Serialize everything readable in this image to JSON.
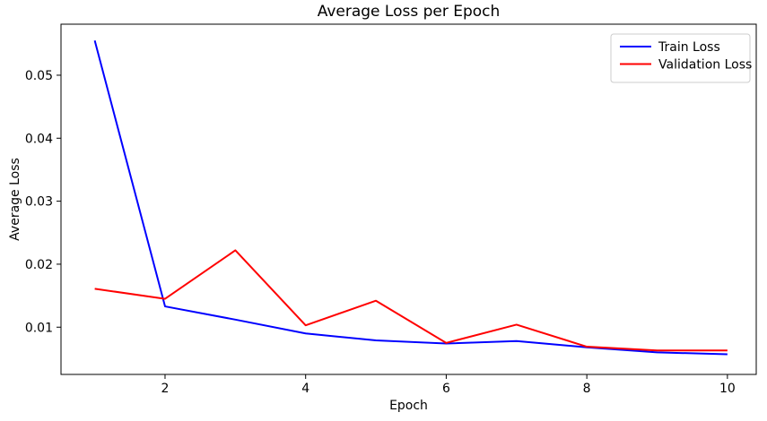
{
  "chart_data": {
    "type": "line",
    "title": "Average Loss per Epoch",
    "xlabel": "Epoch",
    "ylabel": "Average Loss",
    "x": [
      1,
      2,
      3,
      4,
      5,
      6,
      7,
      8,
      9,
      10
    ],
    "series": [
      {
        "name": "Train Loss",
        "color": "#0000ff",
        "values": [
          0.0555,
          0.0133,
          0.0112,
          0.009,
          0.0079,
          0.0074,
          0.0078,
          0.0068,
          0.006,
          0.0057
        ]
      },
      {
        "name": "Validation Loss",
        "color": "#ff0000",
        "values": [
          0.0161,
          0.0145,
          0.0222,
          0.0103,
          0.0142,
          0.0075,
          0.0104,
          0.0069,
          0.0063,
          0.0063
        ]
      }
    ],
    "xlim": [
      0.52,
      10.41
    ],
    "ylim": [
      0.0025,
      0.0581
    ],
    "xticks": [
      2,
      4,
      6,
      8,
      10
    ],
    "yticks": [
      0.01,
      0.02,
      0.03,
      0.04,
      0.05
    ],
    "ytick_decimals": 2,
    "grid": false,
    "legend_position": "upper right",
    "line_width": 2,
    "background_color": "#ffffff",
    "axis_color": "#000000",
    "legend_border_color": "#cccccc"
  }
}
